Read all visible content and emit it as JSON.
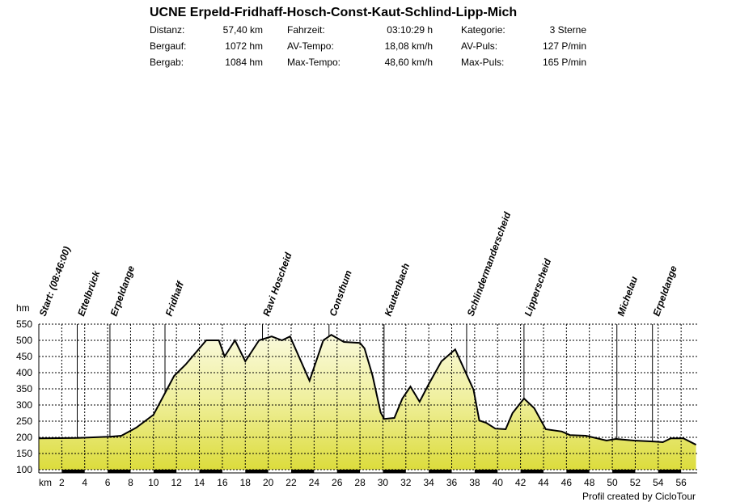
{
  "chart_data": {
    "type": "area",
    "title": "UCNE Erpeld-Fridhaff-Hosch-Const-Kaut-Schlind-Lipp-Mich",
    "stats": [
      [
        [
          "Distanz:",
          "57,40 km"
        ],
        [
          "Fahrzeit:",
          "03:10:29 h"
        ],
        [
          "Kategorie:",
          "3 Sterne"
        ]
      ],
      [
        [
          "Bergauf:",
          "1072 hm"
        ],
        [
          "AV-Tempo:",
          "18,08 km/h"
        ],
        [
          "AV-Puls:",
          "127 P/min"
        ]
      ],
      [
        [
          "Bergab:",
          "1084 hm"
        ],
        [
          "Max-Tempo:",
          "48,60 km/h"
        ],
        [
          "Max-Puls:",
          "165 P/min"
        ]
      ]
    ],
    "ylabel": "hm",
    "xlabel": "km",
    "footer": "Profil created by CicloTour",
    "color": "#000000",
    "x": [
      0,
      3.4,
      6.2,
      7.2,
      8.5,
      10,
      11.8,
      12.8,
      14.6,
      15.7,
      16.2,
      17.1,
      18.0,
      19.2,
      20.3,
      21.2,
      21.9,
      23.6,
      24.8,
      25.5,
      26.6,
      28.0,
      28.4,
      29.1,
      29.8,
      30.1,
      31.0,
      31.7,
      32.4,
      33.2,
      34.0,
      35.1,
      36.3,
      37.2,
      37.9,
      38.4,
      39.0,
      39.8,
      40.7,
      41.3,
      42.3,
      43.2,
      44.2,
      45.6,
      46.3,
      47.7,
      49.5,
      50.3,
      51.9,
      53.7,
      54.4,
      55.1,
      56.2,
      57.3
    ],
    "values": [
      197,
      198,
      202,
      205,
      230,
      270,
      390,
      425,
      500,
      500,
      450,
      500,
      435,
      500,
      512,
      500,
      512,
      375,
      500,
      517,
      495,
      492,
      475,
      390,
      277,
      257,
      260,
      320,
      357,
      310,
      365,
      435,
      472,
      402,
      347,
      252,
      245,
      227,
      225,
      275,
      320,
      290,
      225,
      218,
      207,
      205,
      190,
      195,
      190,
      187,
      185,
      197,
      197,
      177
    ],
    "waypoints": [
      {
        "name": "Start: (08:46:00)",
        "km": 0
      },
      {
        "name": "Ettelbrück",
        "km": 3.35
      },
      {
        "name": "Erpeldange",
        "km": 6.2
      },
      {
        "name": "Fridhaff",
        "km": 11.0
      },
      {
        "name": "Ravi  Hoscheid",
        "km": 19.5
      },
      {
        "name": "Consthum",
        "km": 25.3
      },
      {
        "name": "Kautenbach",
        "km": 30.1
      },
      {
        "name": "Schlindermanderscheid",
        "km": 37.3
      },
      {
        "name": "Lipperscheid",
        "km": 42.3
      },
      {
        "name": "Michelau",
        "km": 50.4
      },
      {
        "name": "Erpeldange",
        "km": 53.5
      }
    ],
    "xlim": [
      0,
      57.4
    ],
    "ylim": [
      100,
      550
    ],
    "xticks": [
      2,
      4,
      6,
      8,
      10,
      12,
      14,
      16,
      18,
      20,
      22,
      24,
      26,
      28,
      30,
      32,
      34,
      36,
      38,
      40,
      42,
      44,
      46,
      48,
      50,
      52,
      54,
      56
    ],
    "yticks": [
      100,
      150,
      200,
      250,
      300,
      350,
      400,
      450,
      500,
      550
    ],
    "grid": true
  }
}
